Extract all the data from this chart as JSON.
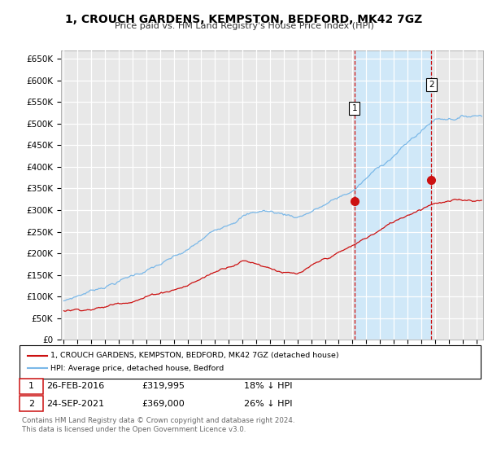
{
  "title": "1, CROUCH GARDENS, KEMPSTON, BEDFORD, MK42 7GZ",
  "subtitle": "Price paid vs. HM Land Registry's House Price Index (HPI)",
  "ylim": [
    0,
    670000
  ],
  "yticks": [
    0,
    50000,
    100000,
    150000,
    200000,
    250000,
    300000,
    350000,
    400000,
    450000,
    500000,
    550000,
    600000,
    650000
  ],
  "xlim_start": 1994.8,
  "xlim_end": 2025.5,
  "sale1_x": 2016.15,
  "sale1_y": 319995,
  "sale1_label": "1",
  "sale2_x": 2021.73,
  "sale2_y": 369000,
  "sale2_label": "2",
  "sale1_date": "26-FEB-2016",
  "sale1_price": "£319,995",
  "sale1_hpi": "18% ↓ HPI",
  "sale2_date": "24-SEP-2021",
  "sale2_price": "£369,000",
  "sale2_hpi": "26% ↓ HPI",
  "legend_label1": "1, CROUCH GARDENS, KEMPSTON, BEDFORD, MK42 7GZ (detached house)",
  "legend_label2": "HPI: Average price, detached house, Bedford",
  "footer": "Contains HM Land Registry data © Crown copyright and database right 2024.\nThis data is licensed under the Open Government Licence v3.0.",
  "hpi_color": "#7ab8e8",
  "price_color": "#cc1111",
  "bg_color": "#e8e8e8",
  "shade_color": "#d0e8f8",
  "vline_color": "#cc1111",
  "grid_color": "#ffffff"
}
